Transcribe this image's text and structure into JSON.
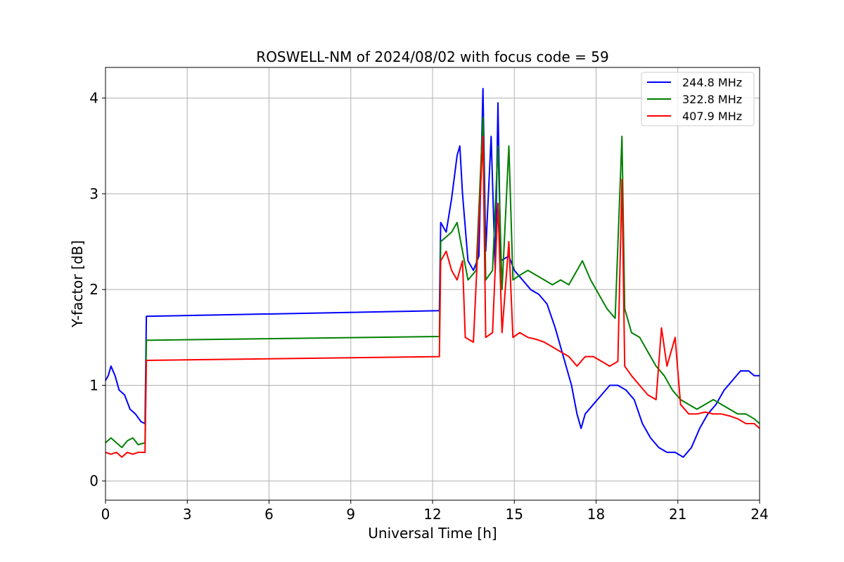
{
  "chart_data": {
    "type": "line",
    "title": "ROSWELL-NM of 2024/08/02 with focus code = 59",
    "xlabel": "Universal Time [h]",
    "ylabel": "Y-factor [dB]",
    "xlim": [
      0,
      24
    ],
    "ylim": [
      -0.2,
      4.32
    ],
    "xticks": [
      0,
      3,
      6,
      9,
      12,
      15,
      18,
      21,
      24
    ],
    "xtick_labels": [
      "0",
      "3",
      "6",
      "9",
      "12",
      "15",
      "18",
      "21",
      "24"
    ],
    "yticks": [
      0,
      1,
      2,
      3,
      4
    ],
    "ytick_labels": [
      "0",
      "1",
      "2",
      "3",
      "4"
    ],
    "grid": true,
    "legend_position": "top-right",
    "series": [
      {
        "name": "244.8 MHz",
        "color": "#0000ff",
        "points": [
          [
            0,
            1.05
          ],
          [
            0.1,
            1.1
          ],
          [
            0.2,
            1.2
          ],
          [
            0.35,
            1.1
          ],
          [
            0.5,
            0.95
          ],
          [
            0.7,
            0.9
          ],
          [
            0.9,
            0.75
          ],
          [
            1.1,
            0.7
          ],
          [
            1.3,
            0.62
          ],
          [
            1.45,
            0.6
          ],
          [
            1.5,
            1.72
          ],
          [
            12.25,
            1.78
          ],
          [
            12.3,
            2.7
          ],
          [
            12.5,
            2.6
          ],
          [
            12.7,
            2.95
          ],
          [
            12.9,
            3.4
          ],
          [
            13.0,
            3.5
          ],
          [
            13.1,
            3.0
          ],
          [
            13.3,
            2.3
          ],
          [
            13.5,
            2.2
          ],
          [
            13.7,
            2.35
          ],
          [
            13.85,
            4.1
          ],
          [
            13.95,
            2.4
          ],
          [
            14.15,
            3.6
          ],
          [
            14.3,
            2.2
          ],
          [
            14.4,
            3.95
          ],
          [
            14.5,
            2.3
          ],
          [
            14.8,
            2.35
          ],
          [
            15.0,
            2.2
          ],
          [
            15.3,
            2.1
          ],
          [
            15.6,
            2.0
          ],
          [
            15.9,
            1.95
          ],
          [
            16.2,
            1.85
          ],
          [
            16.5,
            1.6
          ],
          [
            16.8,
            1.3
          ],
          [
            17.1,
            1.0
          ],
          [
            17.3,
            0.7
          ],
          [
            17.45,
            0.55
          ],
          [
            17.6,
            0.7
          ],
          [
            17.9,
            0.8
          ],
          [
            18.2,
            0.9
          ],
          [
            18.5,
            1.0
          ],
          [
            18.8,
            1.0
          ],
          [
            19.1,
            0.95
          ],
          [
            19.4,
            0.85
          ],
          [
            19.7,
            0.6
          ],
          [
            20.0,
            0.45
          ],
          [
            20.3,
            0.35
          ],
          [
            20.6,
            0.3
          ],
          [
            20.9,
            0.3
          ],
          [
            21.2,
            0.25
          ],
          [
            21.5,
            0.35
          ],
          [
            21.8,
            0.55
          ],
          [
            22.1,
            0.7
          ],
          [
            22.4,
            0.8
          ],
          [
            22.7,
            0.95
          ],
          [
            23.0,
            1.05
          ],
          [
            23.3,
            1.15
          ],
          [
            23.6,
            1.15
          ],
          [
            23.8,
            1.1
          ],
          [
            24.0,
            1.1
          ]
        ]
      },
      {
        "name": "322.8 MHz",
        "color": "#008000",
        "points": [
          [
            0,
            0.4
          ],
          [
            0.2,
            0.45
          ],
          [
            0.4,
            0.4
          ],
          [
            0.6,
            0.35
          ],
          [
            0.8,
            0.42
          ],
          [
            1.0,
            0.45
          ],
          [
            1.2,
            0.38
          ],
          [
            1.45,
            0.4
          ],
          [
            1.5,
            1.47
          ],
          [
            12.25,
            1.51
          ],
          [
            12.3,
            2.5
          ],
          [
            12.5,
            2.55
          ],
          [
            12.7,
            2.6
          ],
          [
            12.9,
            2.7
          ],
          [
            13.1,
            2.4
          ],
          [
            13.3,
            2.1
          ],
          [
            13.6,
            2.2
          ],
          [
            13.85,
            3.8
          ],
          [
            13.95,
            2.1
          ],
          [
            14.2,
            2.2
          ],
          [
            14.4,
            3.5
          ],
          [
            14.55,
            2.0
          ],
          [
            14.8,
            3.5
          ],
          [
            14.95,
            2.1
          ],
          [
            15.2,
            2.15
          ],
          [
            15.5,
            2.2
          ],
          [
            15.8,
            2.15
          ],
          [
            16.1,
            2.1
          ],
          [
            16.4,
            2.05
          ],
          [
            16.7,
            2.1
          ],
          [
            17.0,
            2.05
          ],
          [
            17.3,
            2.2
          ],
          [
            17.5,
            2.3
          ],
          [
            17.8,
            2.1
          ],
          [
            18.1,
            1.95
          ],
          [
            18.4,
            1.8
          ],
          [
            18.7,
            1.7
          ],
          [
            18.95,
            3.6
          ],
          [
            19.05,
            1.8
          ],
          [
            19.3,
            1.55
          ],
          [
            19.6,
            1.5
          ],
          [
            19.9,
            1.35
          ],
          [
            20.2,
            1.2
          ],
          [
            20.5,
            1.1
          ],
          [
            20.8,
            0.95
          ],
          [
            21.1,
            0.85
          ],
          [
            21.4,
            0.8
          ],
          [
            21.7,
            0.75
          ],
          [
            22.0,
            0.8
          ],
          [
            22.3,
            0.85
          ],
          [
            22.6,
            0.8
          ],
          [
            22.9,
            0.75
          ],
          [
            23.2,
            0.7
          ],
          [
            23.5,
            0.7
          ],
          [
            23.8,
            0.65
          ],
          [
            24.0,
            0.6
          ]
        ]
      },
      {
        "name": "407.9 MHz",
        "color": "#ff0000",
        "points": [
          [
            0,
            0.3
          ],
          [
            0.2,
            0.28
          ],
          [
            0.4,
            0.3
          ],
          [
            0.6,
            0.25
          ],
          [
            0.8,
            0.3
          ],
          [
            1.0,
            0.28
          ],
          [
            1.2,
            0.3
          ],
          [
            1.45,
            0.3
          ],
          [
            1.5,
            1.26
          ],
          [
            12.25,
            1.3
          ],
          [
            12.3,
            2.3
          ],
          [
            12.5,
            2.4
          ],
          [
            12.7,
            2.2
          ],
          [
            12.9,
            2.1
          ],
          [
            13.1,
            2.3
          ],
          [
            13.2,
            1.5
          ],
          [
            13.5,
            1.45
          ],
          [
            13.85,
            3.6
          ],
          [
            13.95,
            1.5
          ],
          [
            14.2,
            1.55
          ],
          [
            14.4,
            2.9
          ],
          [
            14.55,
            1.55
          ],
          [
            14.8,
            2.5
          ],
          [
            14.95,
            1.5
          ],
          [
            15.2,
            1.55
          ],
          [
            15.5,
            1.5
          ],
          [
            15.8,
            1.48
          ],
          [
            16.1,
            1.45
          ],
          [
            16.4,
            1.4
          ],
          [
            16.7,
            1.35
          ],
          [
            17.0,
            1.3
          ],
          [
            17.3,
            1.2
          ],
          [
            17.6,
            1.3
          ],
          [
            17.9,
            1.3
          ],
          [
            18.2,
            1.25
          ],
          [
            18.5,
            1.2
          ],
          [
            18.8,
            1.25
          ],
          [
            18.95,
            3.15
          ],
          [
            19.05,
            1.2
          ],
          [
            19.3,
            1.1
          ],
          [
            19.6,
            1.0
          ],
          [
            19.9,
            0.9
          ],
          [
            20.2,
            0.85
          ],
          [
            20.4,
            1.6
          ],
          [
            20.6,
            1.2
          ],
          [
            20.9,
            1.5
          ],
          [
            21.1,
            0.8
          ],
          [
            21.4,
            0.7
          ],
          [
            21.7,
            0.7
          ],
          [
            22.0,
            0.72
          ],
          [
            22.3,
            0.7
          ],
          [
            22.6,
            0.7
          ],
          [
            22.9,
            0.68
          ],
          [
            23.2,
            0.65
          ],
          [
            23.5,
            0.6
          ],
          [
            23.8,
            0.6
          ],
          [
            24.0,
            0.55
          ]
        ]
      }
    ]
  }
}
